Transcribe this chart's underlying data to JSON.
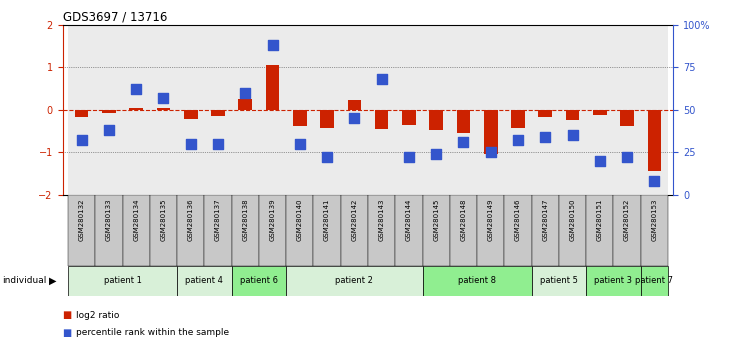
{
  "title": "GDS3697 / 13716",
  "samples": [
    "GSM280132",
    "GSM280133",
    "GSM280134",
    "GSM280135",
    "GSM280136",
    "GSM280137",
    "GSM280138",
    "GSM280139",
    "GSM280140",
    "GSM280141",
    "GSM280142",
    "GSM280143",
    "GSM280144",
    "GSM280145",
    "GSM280148",
    "GSM280149",
    "GSM280146",
    "GSM280147",
    "GSM280150",
    "GSM280151",
    "GSM280152",
    "GSM280153"
  ],
  "log2_ratio": [
    -0.18,
    -0.08,
    0.05,
    0.05,
    -0.22,
    -0.15,
    0.25,
    1.05,
    -0.38,
    -0.42,
    0.22,
    -0.45,
    -0.35,
    -0.48,
    -0.55,
    -1.05,
    -0.42,
    -0.18,
    -0.25,
    -0.12,
    -0.38,
    -1.45
  ],
  "percentile_rank": [
    32,
    38,
    62,
    57,
    30,
    30,
    60,
    88,
    30,
    22,
    45,
    68,
    22,
    24,
    31,
    25,
    32,
    34,
    35,
    20,
    22,
    8
  ],
  "patients": [
    {
      "label": "patient 1",
      "start": 0,
      "end": 4,
      "color": "#d8f0d8"
    },
    {
      "label": "patient 4",
      "start": 4,
      "end": 6,
      "color": "#d8f0d8"
    },
    {
      "label": "patient 6",
      "start": 6,
      "end": 8,
      "color": "#90ee90"
    },
    {
      "label": "patient 2",
      "start": 8,
      "end": 13,
      "color": "#d8f0d8"
    },
    {
      "label": "patient 8",
      "start": 13,
      "end": 17,
      "color": "#90ee90"
    },
    {
      "label": "patient 5",
      "start": 17,
      "end": 19,
      "color": "#d8f0d8"
    },
    {
      "label": "patient 3",
      "start": 19,
      "end": 21,
      "color": "#90ee90"
    },
    {
      "label": "patient 7",
      "start": 21,
      "end": 22,
      "color": "#90ee90"
    }
  ],
  "ylim_left": [
    -2,
    2
  ],
  "ylim_right": [
    0,
    100
  ],
  "yticks_left": [
    -2,
    -1,
    0,
    1,
    2
  ],
  "yticks_right": [
    0,
    25,
    50,
    75,
    100
  ],
  "ytick_labels_right": [
    "0",
    "25",
    "50",
    "75",
    "100%"
  ],
  "bar_color": "#cc2200",
  "dot_color": "#3355cc",
  "background_color": "#ffffff",
  "sample_bg_color": "#c8c8c8",
  "bar_width": 0.5,
  "dot_size": 45
}
